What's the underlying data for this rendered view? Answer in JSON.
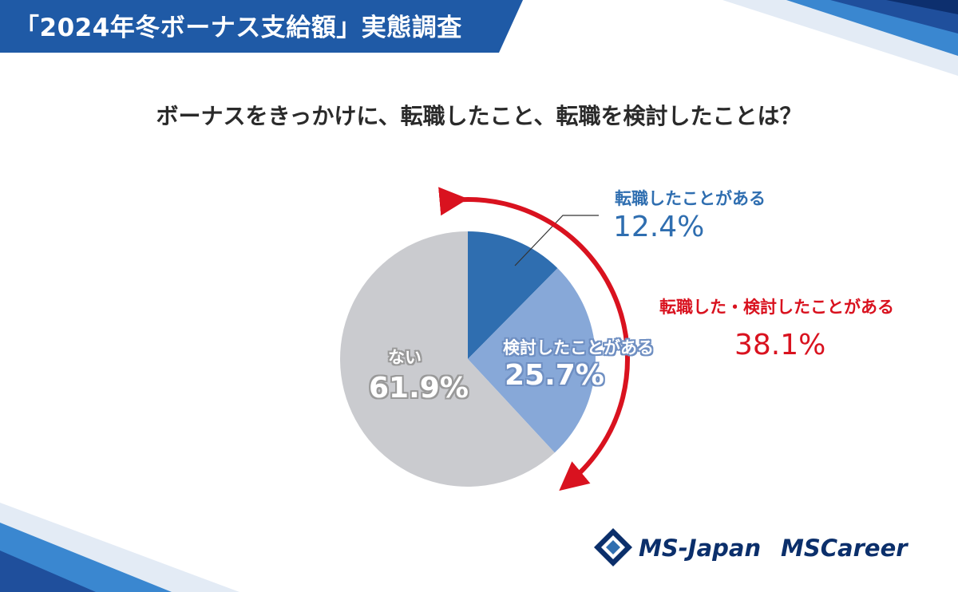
{
  "header": {
    "title": "「2024年冬ボーナス支給額」実態調査",
    "bg_color": "#1f5aa6"
  },
  "question": "ボーナスをきっかけに、転職したこと、転職を検討したことは？",
  "chart_data": {
    "type": "pie",
    "title": "ボーナスをきっかけに、転職したこと、転職を検討したことは？",
    "unit": "%",
    "slices": [
      {
        "label": "転職したことがある",
        "value": 12.4,
        "value_label": "12.4%",
        "color": "#2f6eb0"
      },
      {
        "label": "検討したことがある",
        "value": 25.7,
        "value_label": "25.7%",
        "color": "#87a8d8"
      },
      {
        "label": "ない",
        "value": 61.9,
        "value_label": "61.9%",
        "color": "#cacbcf"
      }
    ],
    "combined": {
      "label": "転職した・検討したことがある",
      "value": 38.1,
      "value_label": "38.1%",
      "color": "#d9121f"
    }
  },
  "logos": {
    "ms_japan": "MS-Japan",
    "ms_career": "MSCareer"
  }
}
